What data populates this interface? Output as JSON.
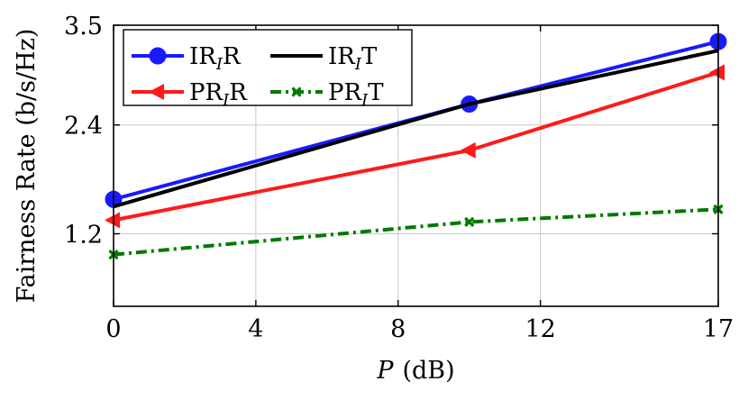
{
  "chart_data": {
    "type": "line",
    "xlabel_var": "P",
    "xlabel_unit": "(dB)",
    "ylabel": "Fairness Rate (b/s/Hz)",
    "xlim": [
      0,
      17
    ],
    "ylim": [
      0.4,
      3.5
    ],
    "xticks": [
      0,
      4,
      8,
      12,
      17
    ],
    "yticks": [
      1.2,
      2.4,
      3.5
    ],
    "xtick_labels": [
      "0",
      "4",
      "8",
      "12",
      "17"
    ],
    "ytick_labels": [
      "1.2",
      "2.4",
      "3.5"
    ],
    "grid": true,
    "legend_position": "top-left",
    "series": [
      {
        "name": "IR_I R",
        "base": "IR",
        "sub": "I",
        "tail": "R",
        "color": "#1a1aff",
        "style": "solid",
        "marker": "circle",
        "x": [
          0,
          10,
          17
        ],
        "y": [
          1.58,
          2.63,
          3.32
        ]
      },
      {
        "name": "IR_I T",
        "base": "IR",
        "sub": "I",
        "tail": "T",
        "color": "#000000",
        "style": "solid",
        "marker": "none",
        "x": [
          0,
          10,
          17
        ],
        "y": [
          1.5,
          2.63,
          3.22
        ]
      },
      {
        "name": "PR_I R",
        "base": "PR",
        "sub": "I",
        "tail": "R",
        "color": "#ff1a1a",
        "style": "solid",
        "marker": "triangle-left",
        "x": [
          0,
          10,
          17
        ],
        "y": [
          1.35,
          2.12,
          2.98
        ]
      },
      {
        "name": "PR_I T",
        "base": "PR",
        "sub": "I",
        "tail": "T",
        "color": "#007a00",
        "style": "dashdot",
        "marker": "x",
        "x": [
          0,
          10,
          17
        ],
        "y": [
          0.97,
          1.33,
          1.47
        ]
      }
    ]
  }
}
